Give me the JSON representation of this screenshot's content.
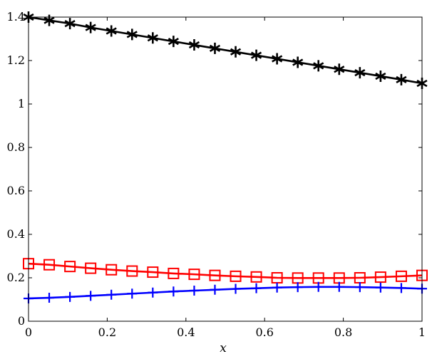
{
  "chart_data": {
    "type": "line",
    "title": "",
    "xlabel": "x",
    "ylabel": "",
    "xlim": [
      0,
      1
    ],
    "ylim": [
      0,
      1.4
    ],
    "grid": false,
    "legend": "none",
    "xticks": [
      "0",
      "0.2",
      "0.4",
      "0.6",
      "0.8",
      "1"
    ],
    "yticks": [
      "0",
      "0.2",
      "0.4",
      "0.6",
      "0.8",
      "1",
      "1.2",
      "1.4"
    ],
    "x": [
      0,
      0.0526,
      0.1053,
      0.1579,
      0.2105,
      0.2632,
      0.3158,
      0.3684,
      0.4211,
      0.4737,
      0.5263,
      0.5789,
      0.6316,
      0.6842,
      0.7368,
      0.7895,
      0.8421,
      0.8947,
      0.9474,
      1
    ],
    "series": [
      {
        "color": "#000000",
        "marker": "asterisk",
        "values": [
          1.4,
          1.385,
          1.37,
          1.352,
          1.336,
          1.32,
          1.304,
          1.288,
          1.272,
          1.256,
          1.24,
          1.224,
          1.208,
          1.192,
          1.176,
          1.16,
          1.144,
          1.128,
          1.112,
          1.095
        ]
      },
      {
        "color": "#ff0000",
        "marker": "square",
        "values": [
          0.265,
          0.26,
          0.252,
          0.244,
          0.237,
          0.231,
          0.226,
          0.22,
          0.216,
          0.211,
          0.207,
          0.204,
          0.2,
          0.199,
          0.199,
          0.199,
          0.2,
          0.203,
          0.207,
          0.211
        ]
      },
      {
        "color": "#0000ff",
        "marker": "plus",
        "values": [
          0.105,
          0.108,
          0.112,
          0.117,
          0.122,
          0.127,
          0.132,
          0.137,
          0.141,
          0.145,
          0.149,
          0.152,
          0.155,
          0.157,
          0.158,
          0.158,
          0.157,
          0.155,
          0.153,
          0.15
        ]
      }
    ]
  }
}
